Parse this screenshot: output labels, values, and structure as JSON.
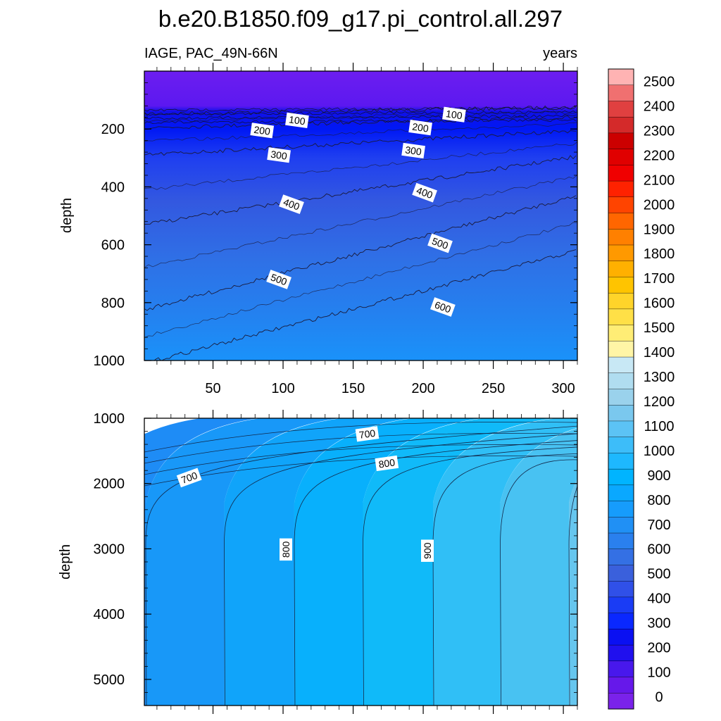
{
  "title": "b.e20.B1850.f09_g17.pi_control.all.297",
  "chart_data": [
    {
      "type": "contour",
      "panel": "upper",
      "left_title": "IAGE, PAC_49N-66N",
      "right_title": "years",
      "xlabel": "",
      "ylabel": "depth",
      "xlim": [
        1,
        310
      ],
      "ylim": [
        0,
        1000
      ],
      "y_reversed": true,
      "xticks": [
        50,
        100,
        150,
        200,
        250,
        300
      ],
      "yticks": [
        200,
        400,
        600,
        800,
        1000
      ],
      "contours": [
        {
          "level": 100,
          "depth_start": 148,
          "depth_end": 125
        },
        {
          "level": 200,
          "depth_start": 195,
          "depth_end": 160
        },
        {
          "level": 300,
          "depth_start": 290,
          "depth_end": 205
        },
        {
          "level": 400,
          "depth_start": 530,
          "depth_end": 295
        },
        {
          "level": 500,
          "depth_start": 825,
          "depth_end": 430
        },
        {
          "level": 600,
          "depth_start": 1010,
          "depth_end": 620
        }
      ],
      "contour_labels": [
        {
          "text": "100",
          "x": 110,
          "depth": 170
        },
        {
          "text": "100",
          "x": 222,
          "depth": 150
        },
        {
          "text": "200",
          "x": 85,
          "depth": 205
        },
        {
          "text": "200",
          "x": 198,
          "depth": 195
        },
        {
          "text": "300",
          "x": 97,
          "depth": 290
        },
        {
          "text": "300",
          "x": 193,
          "depth": 275
        },
        {
          "text": "400",
          "x": 106,
          "depth": 460
        },
        {
          "text": "400",
          "x": 201,
          "depth": 420
        },
        {
          "text": "500",
          "x": 97,
          "depth": 720
        },
        {
          "text": "500",
          "x": 212,
          "depth": 595
        },
        {
          "text": "600",
          "x": 214,
          "depth": 815
        }
      ]
    },
    {
      "type": "contour",
      "panel": "lower",
      "xlabel": "",
      "ylabel": "depth",
      "xlim": [
        1,
        310
      ],
      "ylim": [
        1000,
        5400
      ],
      "y_reversed": true,
      "yticks": [
        1000,
        2000,
        3000,
        4000,
        5000
      ],
      "contours": [
        {
          "level": 650,
          "x_deep": 2
        },
        {
          "level": 700,
          "x_deep": 58
        },
        {
          "level": 750,
          "x_deep": 108
        },
        {
          "level": 800,
          "x_deep": 157
        },
        {
          "level": 850,
          "x_deep": 207
        },
        {
          "level": 900,
          "x_deep": 255
        },
        {
          "level": 950,
          "x_deep": 304
        }
      ],
      "contour_labels": [
        {
          "text": "700",
          "x": 160,
          "depth": 1240
        },
        {
          "text": "700",
          "x": 33,
          "depth": 1910
        },
        {
          "text": "800",
          "x": 174,
          "depth": 1690
        },
        {
          "text": "800",
          "x": 102,
          "depth": 3010
        },
        {
          "text": "900",
          "x": 203,
          "depth": 3030
        }
      ]
    }
  ],
  "colorbar": {
    "labels": [
      "2500",
      "2400",
      "2300",
      "2200",
      "2100",
      "2000",
      "1900",
      "1800",
      "1700",
      "1600",
      "1500",
      "1400",
      "1300",
      "1200",
      "1100",
      "1000",
      "900",
      "800",
      "700",
      "600",
      "500",
      "400",
      "300",
      "200",
      "100",
      "0"
    ],
    "colors": [
      "#ffb3b3",
      "#f07070",
      "#e04040",
      "#d42a2a",
      "#cc0000",
      "#e00000",
      "#f00000",
      "#ff2200",
      "#ff4400",
      "#ff6600",
      "#ff8000",
      "#ff9900",
      "#ffb000",
      "#ffc400",
      "#ffd42a",
      "#ffe047",
      "#ffed75",
      "#fff5a6",
      "#c8e8f5",
      "#b0ddf0",
      "#9ad2ec",
      "#7ac8ee",
      "#5cc3f5",
      "#3dbdf9",
      "#1eb8fe",
      "#00b4ff",
      "#0aa8ff",
      "#169cfc",
      "#2090f5",
      "#2a80ee",
      "#3470e4",
      "#3a60dc",
      "#3050e8",
      "#1a3cf5",
      "#0a28ff",
      "#0a10f2",
      "#2010ee",
      "#4818ec",
      "#6618ea",
      "#7a22ea"
    ]
  }
}
